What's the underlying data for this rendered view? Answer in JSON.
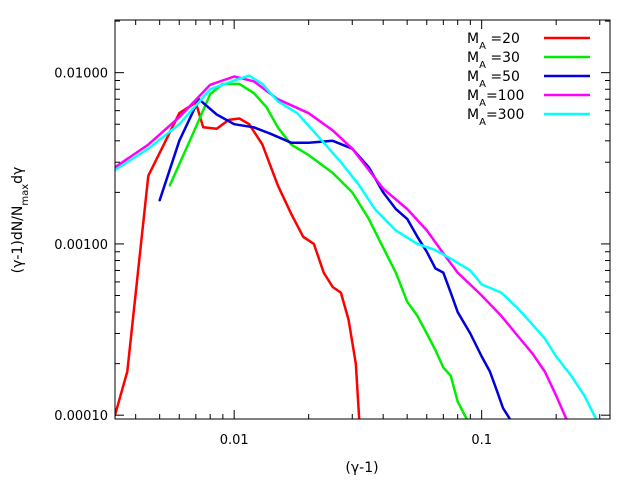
{
  "chart_data": {
    "type": "line",
    "title": "",
    "xlabel": "(γ-1)",
    "ylabel": "(γ-1)dN/N_max dγ",
    "ylabel_parts": {
      "base": "(γ-1)dN/N",
      "sub": "max",
      "tail": "dγ"
    },
    "xscale": "log",
    "yscale": "log",
    "xlim": [
      0.0033,
      0.33
    ],
    "ylim": [
      9.5e-05,
      0.0203
    ],
    "x_ticks": [
      {
        "value": 0.01,
        "label": "0.01"
      },
      {
        "value": 0.1,
        "label": "0.1"
      }
    ],
    "y_ticks": [
      {
        "value": 0.0001,
        "label": "0.00010"
      },
      {
        "value": 0.001,
        "label": "0.00100"
      },
      {
        "value": 0.01,
        "label": "0.01000"
      }
    ],
    "legend_position": "top-right",
    "series": [
      {
        "name": "MA=20",
        "label_main": "M",
        "label_sub": "A",
        "label_value": " =20",
        "color": "#ff0000",
        "points": [
          [
            0.0033,
            0.0001
          ],
          [
            0.0037,
            0.00018
          ],
          [
            0.0045,
            0.0025
          ],
          [
            0.006,
            0.0058
          ],
          [
            0.007,
            0.0067
          ],
          [
            0.0075,
            0.0048
          ],
          [
            0.0085,
            0.0047
          ],
          [
            0.0095,
            0.0053
          ],
          [
            0.0105,
            0.0054
          ],
          [
            0.0115,
            0.005
          ],
          [
            0.013,
            0.0038
          ],
          [
            0.015,
            0.0022
          ],
          [
            0.017,
            0.0015
          ],
          [
            0.019,
            0.0011
          ],
          [
            0.021,
            0.001
          ],
          [
            0.023,
            0.00068
          ],
          [
            0.025,
            0.00056
          ],
          [
            0.027,
            0.00052
          ],
          [
            0.029,
            0.00036
          ],
          [
            0.031,
            0.0002
          ],
          [
            0.032,
            9.5e-05
          ]
        ]
      },
      {
        "name": "MA=30",
        "label_main": "M",
        "label_sub": "A",
        "label_value": " =30",
        "color": "#00ee00",
        "points": [
          [
            0.0055,
            0.0022
          ],
          [
            0.007,
            0.0048
          ],
          [
            0.008,
            0.0075
          ],
          [
            0.009,
            0.0086
          ],
          [
            0.0105,
            0.0086
          ],
          [
            0.012,
            0.0076
          ],
          [
            0.0135,
            0.0063
          ],
          [
            0.015,
            0.0048
          ],
          [
            0.017,
            0.0038
          ],
          [
            0.02,
            0.0033
          ],
          [
            0.025,
            0.0026
          ],
          [
            0.03,
            0.002
          ],
          [
            0.035,
            0.0014
          ],
          [
            0.04,
            0.00095
          ],
          [
            0.045,
            0.00068
          ],
          [
            0.05,
            0.00046
          ],
          [
            0.055,
            0.00038
          ],
          [
            0.06,
            0.0003
          ],
          [
            0.065,
            0.00024
          ],
          [
            0.07,
            0.00019
          ],
          [
            0.075,
            0.00017
          ],
          [
            0.08,
            0.00012
          ],
          [
            0.087,
            9.5e-05
          ]
        ]
      },
      {
        "name": "MA=50",
        "label_main": "M",
        "label_sub": "A",
        "label_value": " =50",
        "color": "#0000dd",
        "points": [
          [
            0.005,
            0.0018
          ],
          [
            0.006,
            0.004
          ],
          [
            0.0072,
            0.007
          ],
          [
            0.0085,
            0.0057
          ],
          [
            0.01,
            0.005
          ],
          [
            0.012,
            0.0048
          ],
          [
            0.014,
            0.0044
          ],
          [
            0.017,
            0.0039
          ],
          [
            0.02,
            0.0039
          ],
          [
            0.025,
            0.004
          ],
          [
            0.03,
            0.0036
          ],
          [
            0.035,
            0.0028
          ],
          [
            0.04,
            0.002
          ],
          [
            0.045,
            0.0016
          ],
          [
            0.05,
            0.0014
          ],
          [
            0.055,
            0.0011
          ],
          [
            0.06,
            0.0009
          ],
          [
            0.065,
            0.00072
          ],
          [
            0.07,
            0.00068
          ],
          [
            0.075,
            0.00052
          ],
          [
            0.08,
            0.0004
          ],
          [
            0.09,
            0.0003
          ],
          [
            0.1,
            0.00022
          ],
          [
            0.108,
            0.00018
          ],
          [
            0.115,
            0.00014
          ],
          [
            0.122,
            0.00011
          ],
          [
            0.13,
            9.5e-05
          ]
        ]
      },
      {
        "name": "MA=100",
        "label_main": "M",
        "label_sub": "A",
        "label_value": "=100",
        "color": "#ff00ff",
        "points": [
          [
            0.0033,
            0.0028
          ],
          [
            0.0045,
            0.0038
          ],
          [
            0.006,
            0.0055
          ],
          [
            0.008,
            0.0085
          ],
          [
            0.01,
            0.0095
          ],
          [
            0.012,
            0.0089
          ],
          [
            0.015,
            0.007
          ],
          [
            0.02,
            0.0058
          ],
          [
            0.025,
            0.0046
          ],
          [
            0.03,
            0.0036
          ],
          [
            0.035,
            0.0027
          ],
          [
            0.04,
            0.0021
          ],
          [
            0.05,
            0.0016
          ],
          [
            0.06,
            0.0012
          ],
          [
            0.07,
            0.00088
          ],
          [
            0.08,
            0.00068
          ],
          [
            0.1,
            0.0005
          ],
          [
            0.12,
            0.00038
          ],
          [
            0.14,
            0.00029
          ],
          [
            0.16,
            0.00023
          ],
          [
            0.18,
            0.00018
          ],
          [
            0.2,
            0.00013
          ],
          [
            0.22,
            9.5e-05
          ]
        ]
      },
      {
        "name": "MA=300",
        "label_main": "M",
        "label_sub": "A",
        "label_value": "=300",
        "color": "#00ffff",
        "points": [
          [
            0.0033,
            0.0027
          ],
          [
            0.0045,
            0.0036
          ],
          [
            0.006,
            0.005
          ],
          [
            0.008,
            0.008
          ],
          [
            0.01,
            0.009
          ],
          [
            0.0115,
            0.0096
          ],
          [
            0.013,
            0.0086
          ],
          [
            0.015,
            0.0068
          ],
          [
            0.018,
            0.0058
          ],
          [
            0.022,
            0.0042
          ],
          [
            0.027,
            0.003
          ],
          [
            0.032,
            0.0022
          ],
          [
            0.037,
            0.0016
          ],
          [
            0.045,
            0.0012
          ],
          [
            0.055,
            0.001
          ],
          [
            0.065,
            0.00092
          ],
          [
            0.075,
            0.00082
          ],
          [
            0.09,
            0.0007
          ],
          [
            0.1,
            0.00058
          ],
          [
            0.12,
            0.00052
          ],
          [
            0.14,
            0.00042
          ],
          [
            0.16,
            0.00034
          ],
          [
            0.18,
            0.00028
          ],
          [
            0.2,
            0.00022
          ],
          [
            0.23,
            0.00017
          ],
          [
            0.26,
            0.00013
          ],
          [
            0.29,
            9.5e-05
          ]
        ]
      }
    ]
  }
}
